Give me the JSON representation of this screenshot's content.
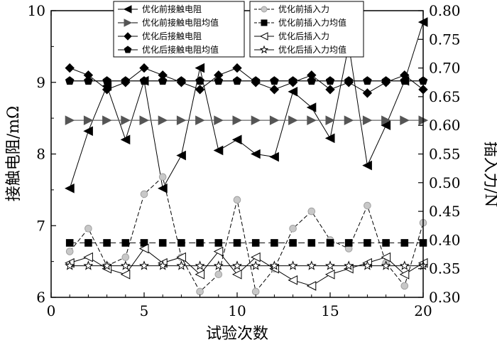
{
  "chart_data": {
    "type": "line",
    "xlabel": "试验次数",
    "ylabel_left": "接触电阻/mΩ",
    "ylabel_right": "插入力/N",
    "xlim": [
      0,
      20
    ],
    "ylim_left": [
      6,
      10
    ],
    "ylim_right": [
      0.3,
      0.8
    ],
    "xticks": [
      0,
      5,
      10,
      15,
      20
    ],
    "yticks_left": [
      6,
      7,
      8,
      9,
      10
    ],
    "yticks_right": [
      "0.30",
      "0.35",
      "0.40",
      "0.45",
      "0.50",
      "0.55",
      "0.60",
      "0.65",
      "0.70",
      "0.75",
      "0.80"
    ],
    "legend_placement": "top",
    "series": [
      {
        "name": "优化前接触电阻",
        "axis": "left",
        "marker": "tri-left",
        "line": "solid",
        "color": "#000000",
        "x": [
          1,
          2,
          3,
          4,
          5,
          6,
          7,
          8,
          9,
          10,
          11,
          12,
          13,
          14,
          15,
          16,
          17,
          18,
          19,
          20
        ],
        "y": [
          7.52,
          8.32,
          8.95,
          8.2,
          9.02,
          7.52,
          7.98,
          9.2,
          8.05,
          8.2,
          8.0,
          7.96,
          8.87,
          8.65,
          8.22,
          9.52,
          7.84,
          8.4,
          9.02,
          9.84
        ]
      },
      {
        "name": "优化前接触电阻均值",
        "axis": "left",
        "marker": "tri-right",
        "line": "solid",
        "color": "#555555",
        "x": [
          1,
          2,
          3,
          4,
          5,
          6,
          7,
          8,
          9,
          10,
          11,
          12,
          13,
          14,
          15,
          16,
          17,
          18,
          19,
          20
        ],
        "y": [
          8.47,
          8.47,
          8.47,
          8.47,
          8.47,
          8.47,
          8.47,
          8.47,
          8.47,
          8.47,
          8.47,
          8.47,
          8.47,
          8.47,
          8.47,
          8.47,
          8.47,
          8.47,
          8.47,
          8.47
        ]
      },
      {
        "name": "优化后接触电阻",
        "axis": "left",
        "marker": "diamond",
        "line": "solid",
        "color": "#000000",
        "x": [
          1,
          2,
          3,
          4,
          5,
          6,
          7,
          8,
          9,
          10,
          11,
          12,
          13,
          14,
          15,
          16,
          17,
          18,
          19,
          20
        ],
        "y": [
          9.2,
          9.1,
          8.9,
          9.0,
          9.2,
          9.1,
          9.0,
          8.9,
          9.1,
          9.2,
          9.0,
          8.9,
          9.0,
          9.1,
          8.9,
          9.0,
          8.85,
          9.0,
          9.1,
          8.9
        ]
      },
      {
        "name": "优化后接触电阻均值",
        "axis": "left",
        "marker": "pentagon",
        "line": "solid",
        "color": "#000000",
        "x": [
          1,
          2,
          3,
          4,
          5,
          6,
          7,
          8,
          9,
          10,
          11,
          12,
          13,
          14,
          15,
          16,
          17,
          18,
          19,
          20
        ],
        "y": [
          9.02,
          9.02,
          9.02,
          9.02,
          9.02,
          9.02,
          9.02,
          9.02,
          9.02,
          9.02,
          9.02,
          9.02,
          9.02,
          9.02,
          9.02,
          9.02,
          9.02,
          9.02,
          9.02,
          9.02
        ]
      },
      {
        "name": "优化前插入力",
        "axis": "right",
        "marker": "circle",
        "line": "dashed",
        "color": "#000000",
        "marker_fill": "#c8c8c8",
        "x": [
          1,
          2,
          3,
          4,
          5,
          6,
          7,
          8,
          9,
          10,
          11,
          12,
          13,
          14,
          15,
          16,
          17,
          18,
          19,
          20
        ],
        "y": [
          0.38,
          0.42,
          0.355,
          0.37,
          0.48,
          0.51,
          0.37,
          0.31,
          0.34,
          0.47,
          0.31,
          0.35,
          0.42,
          0.45,
          0.4,
          0.385,
          0.46,
          0.36,
          0.32,
          0.43
        ]
      },
      {
        "name": "优化前插入力均值",
        "axis": "right",
        "marker": "square",
        "line": "dashed",
        "color": "#000000",
        "x": [
          1,
          2,
          3,
          4,
          5,
          6,
          7,
          8,
          9,
          10,
          11,
          12,
          13,
          14,
          15,
          16,
          17,
          18,
          19,
          20
        ],
        "y": [
          0.395,
          0.395,
          0.395,
          0.395,
          0.395,
          0.395,
          0.395,
          0.395,
          0.395,
          0.395,
          0.395,
          0.395,
          0.395,
          0.395,
          0.395,
          0.395,
          0.395,
          0.395,
          0.395,
          0.395
        ]
      },
      {
        "name": "优化后插入力",
        "axis": "right",
        "marker": "open-tri-left",
        "line": "solid",
        "color": "#000000",
        "x": [
          1,
          2,
          3,
          4,
          5,
          6,
          7,
          8,
          9,
          10,
          11,
          12,
          13,
          14,
          15,
          16,
          17,
          18,
          19,
          20
        ],
        "y": [
          0.36,
          0.37,
          0.35,
          0.34,
          0.385,
          0.36,
          0.37,
          0.34,
          0.38,
          0.34,
          0.37,
          0.35,
          0.33,
          0.32,
          0.34,
          0.35,
          0.36,
          0.37,
          0.34,
          0.36
        ]
      },
      {
        "name": "优化后插入力均值",
        "axis": "right",
        "marker": "star",
        "line": "solid",
        "color": "#000000",
        "x": [
          1,
          2,
          3,
          4,
          5,
          6,
          7,
          8,
          9,
          10,
          11,
          12,
          13,
          14,
          15,
          16,
          17,
          18,
          19,
          20
        ],
        "y": [
          0.355,
          0.355,
          0.355,
          0.355,
          0.355,
          0.355,
          0.355,
          0.355,
          0.355,
          0.355,
          0.355,
          0.355,
          0.355,
          0.355,
          0.355,
          0.355,
          0.355,
          0.355,
          0.355,
          0.355
        ]
      }
    ]
  }
}
